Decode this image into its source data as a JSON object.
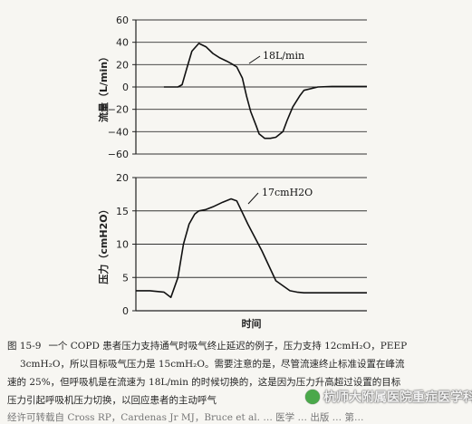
{
  "chart_data": [
    {
      "type": "line",
      "title": "",
      "xlabel": "",
      "ylabel": "流量（L/min）",
      "ylim": [
        -60,
        60
      ],
      "yticks": [
        "60",
        "40",
        "20",
        "0",
        "−20",
        "−40",
        "−60"
      ],
      "grid": true,
      "annotation": "18L/min",
      "series": [
        {
          "x": [
            0.2,
            0.3,
            0.33,
            0.36,
            0.4,
            0.45,
            0.5,
            0.55,
            0.6,
            0.65,
            0.68,
            0.72,
            0.76,
            0.79,
            0.82,
            0.86,
            0.88,
            0.92,
            0.96,
            1.0,
            1.05,
            1.08,
            1.12,
            1.17,
            1.2,
            1.3,
            1.4,
            1.5,
            1.65
          ],
          "y": [
            0,
            0,
            2,
            15,
            32,
            39,
            36,
            30,
            26,
            23,
            21,
            18,
            8,
            -8,
            -22,
            -35,
            -42,
            -46,
            -46,
            -45,
            -40,
            -30,
            -18,
            -8,
            -3,
            0,
            0.5,
            0.5,
            0.5
          ]
        }
      ]
    },
    {
      "type": "line",
      "title": "",
      "xlabel": "时间",
      "ylabel": "压力（cmH2O）",
      "ylim": [
        0,
        20
      ],
      "yticks": [
        "20",
        "15",
        "10",
        "5",
        "0"
      ],
      "grid": true,
      "annotation": "17cmH2O",
      "series": [
        {
          "x": [
            0.0,
            0.1,
            0.2,
            0.25,
            0.3,
            0.34,
            0.38,
            0.42,
            0.45,
            0.5,
            0.55,
            0.62,
            0.68,
            0.72,
            0.8,
            0.9,
            1.0,
            1.1,
            1.15,
            1.2,
            1.3,
            1.4,
            1.5,
            1.65
          ],
          "y": [
            3,
            3,
            2.8,
            2,
            5,
            10,
            13,
            14.5,
            15,
            15.2,
            15.6,
            16.3,
            16.8,
            16.5,
            13,
            9,
            4.5,
            3,
            2.8,
            2.7,
            2.7,
            2.7,
            2.7,
            2.7
          ]
        }
      ]
    }
  ],
  "caption": {
    "label": "图 15-9",
    "line1": "一个 COPD 患者压力支持通气时吸气终止延迟的例子，压力支持 12cmH₂O，PEEP",
    "line2": "3cmH₂O，所以目标吸气压力是 15cmH₂O。需要注意的是，尽管流速终止标准设置在峰流",
    "line3": "速的 25%，但呼吸机是在流速为 18L/min 的时候切换的，这是因为压力升高超过设置的目标",
    "line4": "压力引起呼吸机压力切换，以回应患者的主动呼气",
    "line5": "经许可转载自 Cross RP，Cardenas Jr MJ，Bruce et al. … 医学 … 出版 … 第…"
  },
  "watermark": "杭师大附属医院重症医学科"
}
